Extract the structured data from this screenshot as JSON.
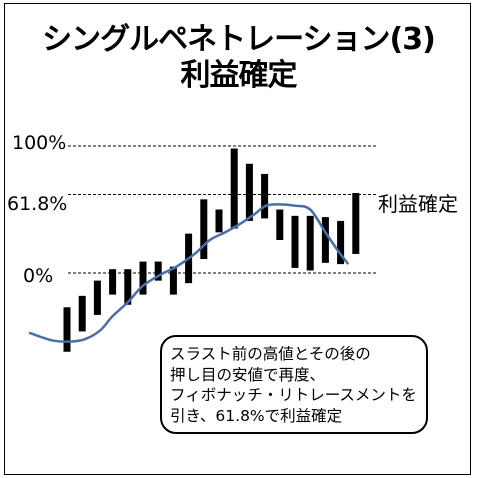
{
  "title": {
    "line1": "シングルペネトレーション(3)",
    "line2": "利益確定"
  },
  "levels": {
    "top": "100%",
    "fib": "61.8%",
    "bottom": "0%"
  },
  "annotation": {
    "label": "利益確定",
    "note": [
      "スラスト前の高値とその後の",
      "押し目の安値で再度、",
      "フィボナッチ・リトレースメントを",
      "引き、61.8%で利益確定"
    ]
  },
  "chart_data": {
    "type": "bar",
    "description_free": true,
    "price_range": [
      -30,
      100
    ],
    "reference_levels": [
      100,
      61.8,
      0
    ],
    "bar_color": "#000000",
    "ma_color": "#4a6ea8",
    "bars": [
      {
        "high": -27,
        "low": -62
      },
      {
        "high": -18,
        "low": -46
      },
      {
        "high": -6,
        "low": -33
      },
      {
        "high": 3,
        "low": -17
      },
      {
        "high": 3,
        "low": -25
      },
      {
        "high": 9,
        "low": -17
      },
      {
        "high": 9,
        "low": -6
      },
      {
        "high": 5,
        "low": -17
      },
      {
        "high": 31,
        "low": -8
      },
      {
        "high": 58,
        "low": 11
      },
      {
        "high": 50,
        "low": 32
      },
      {
        "high": 98,
        "low": 35
      },
      {
        "high": 86,
        "low": 41
      },
      {
        "high": 78,
        "low": 43
      },
      {
        "high": 50,
        "low": 26
      },
      {
        "high": 45,
        "low": 4
      },
      {
        "high": 45,
        "low": 2
      },
      {
        "high": 44,
        "low": 8
      },
      {
        "high": 41,
        "low": 7
      },
      {
        "high": 63,
        "low": 15
      }
    ],
    "moving_average": [
      {
        "x": -2.5,
        "y": -47
      },
      {
        "x": -1.0,
        "y": -53
      },
      {
        "x": 0.2,
        "y": -54
      },
      {
        "x": 1.2,
        "y": -52
      },
      {
        "x": 2.2,
        "y": -45
      },
      {
        "x": 3.0,
        "y": -34
      },
      {
        "x": 4.0,
        "y": -23
      },
      {
        "x": 5.0,
        "y": -10
      },
      {
        "x": 6.2,
        "y": -1
      },
      {
        "x": 7.2,
        "y": 5
      },
      {
        "x": 8.4,
        "y": 15
      },
      {
        "x": 9.4,
        "y": 26
      },
      {
        "x": 10.4,
        "y": 32
      },
      {
        "x": 11.3,
        "y": 38
      },
      {
        "x": 12.3,
        "y": 46
      },
      {
        "x": 13.1,
        "y": 53
      },
      {
        "x": 14.0,
        "y": 54
      },
      {
        "x": 15.0,
        "y": 53
      },
      {
        "x": 16.0,
        "y": 50
      },
      {
        "x": 17.0,
        "y": 32
      },
      {
        "x": 17.8,
        "y": 18
      },
      {
        "x": 18.5,
        "y": 7
      }
    ]
  }
}
